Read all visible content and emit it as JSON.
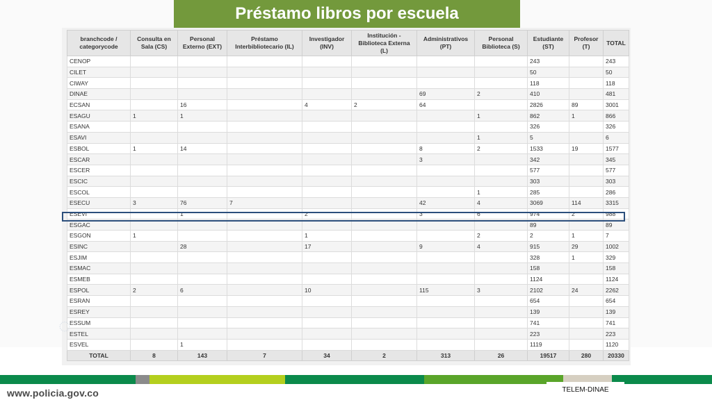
{
  "title": "Préstamo libros por escuela",
  "colors": {
    "title_bg": "#73993c",
    "highlight_border": "#2c4f7c",
    "stripe_colors": [
      "#0b8a4b",
      "#8b8b8b",
      "#b4cf1e",
      "#0b8a4b",
      "#5aa52a",
      "#0b8a4b",
      "#d6cfc1",
      "#0b8a4b"
    ]
  },
  "table": {
    "headers": [
      [
        "branchcode /",
        "categorycode"
      ],
      [
        "Consulta en",
        "Sala (CS)"
      ],
      [
        "Personal",
        "Externo (EXT)"
      ],
      [
        "Préstamo",
        "Interbibliotecario (IL)"
      ],
      [
        "Investigador",
        "(INV)"
      ],
      [
        "Institución -",
        "Biblioteca Externa",
        "(L)"
      ],
      [
        "Administrativos",
        "(PT)"
      ],
      [
        "Personal",
        "Biblioteca (S)"
      ],
      [
        "Estudiante",
        "(ST)"
      ],
      [
        "Profesor",
        "(T)"
      ],
      [
        "TOTAL"
      ]
    ],
    "rows": [
      [
        "CENOP",
        "",
        "",
        "",
        "",
        "",
        "",
        "",
        "243",
        "",
        "243"
      ],
      [
        "CILET",
        "",
        "",
        "",
        "",
        "",
        "",
        "",
        "50",
        "",
        "50"
      ],
      [
        "CIWAY",
        "",
        "",
        "",
        "",
        "",
        "",
        "",
        "118",
        "",
        "118"
      ],
      [
        "DINAE",
        "",
        "",
        "",
        "",
        "",
        "69",
        "2",
        "410",
        "",
        "481"
      ],
      [
        "ECSAN",
        "",
        "16",
        "",
        "4",
        "2",
        "64",
        "",
        "2826",
        "89",
        "3001"
      ],
      [
        "ESAGU",
        "1",
        "1",
        "",
        "",
        "",
        "",
        "1",
        "862",
        "1",
        "866"
      ],
      [
        "ESANA",
        "",
        "",
        "",
        "",
        "",
        "",
        "",
        "326",
        "",
        "326"
      ],
      [
        "ESAVI",
        "",
        "",
        "",
        "",
        "",
        "",
        "1",
        "5",
        "",
        "6"
      ],
      [
        "ESBOL",
        "1",
        "14",
        "",
        "",
        "",
        "8",
        "2",
        "1533",
        "19",
        "1577"
      ],
      [
        "ESCAR",
        "",
        "",
        "",
        "",
        "",
        "3",
        "",
        "342",
        "",
        "345"
      ],
      [
        "ESCER",
        "",
        "",
        "",
        "",
        "",
        "",
        "",
        "577",
        "",
        "577"
      ],
      [
        "ESCIC",
        "",
        "",
        "",
        "",
        "",
        "",
        "",
        "303",
        "",
        "303"
      ],
      [
        "ESCOL",
        "",
        "",
        "",
        "",
        "",
        "",
        "1",
        "285",
        "",
        "286"
      ],
      [
        "ESECU",
        "3",
        "76",
        "7",
        "",
        "",
        "42",
        "4",
        "3069",
        "114",
        "3315"
      ],
      [
        "ESEVI",
        "",
        "1",
        "",
        "2",
        "",
        "3",
        "6",
        "974",
        "2",
        "988"
      ],
      [
        "ESGAC",
        "",
        "",
        "",
        "",
        "",
        "",
        "",
        "89",
        "",
        "89"
      ],
      [
        "ESGON",
        "1",
        "",
        "",
        "1",
        "",
        "",
        "2",
        "2",
        "1",
        "7"
      ],
      [
        "ESINC",
        "",
        "28",
        "",
        "17",
        "",
        "9",
        "4",
        "915",
        "29",
        "1002"
      ],
      [
        "ESJIM",
        "",
        "",
        "",
        "",
        "",
        "",
        "",
        "328",
        "1",
        "329"
      ],
      [
        "ESMAC",
        "",
        "",
        "",
        "",
        "",
        "",
        "",
        "158",
        "",
        "158"
      ],
      [
        "ESMEB",
        "",
        "",
        "",
        "",
        "",
        "",
        "",
        "1124",
        "",
        "1124"
      ],
      [
        "ESPOL",
        "2",
        "6",
        "",
        "10",
        "",
        "115",
        "3",
        "2102",
        "24",
        "2262"
      ],
      [
        "ESRAN",
        "",
        "",
        "",
        "",
        "",
        "",
        "",
        "654",
        "",
        "654"
      ],
      [
        "ESREY",
        "",
        "",
        "",
        "",
        "",
        "",
        "",
        "139",
        "",
        "139"
      ],
      [
        "ESSUM",
        "",
        "",
        "",
        "",
        "",
        "",
        "",
        "741",
        "",
        "741"
      ],
      [
        "ESTEL",
        "",
        "",
        "",
        "",
        "",
        "",
        "",
        "223",
        "",
        "223"
      ],
      [
        "ESVEL",
        "",
        "1",
        "",
        "",
        "",
        "",
        "",
        "1119",
        "",
        "1120"
      ]
    ],
    "totals": [
      "TOTAL",
      "8",
      "143",
      "7",
      "34",
      "2",
      "313",
      "26",
      "19517",
      "280",
      "20330"
    ],
    "highlighted_row": "ESEVI"
  },
  "footer": {
    "url": "www.policia.gov.co",
    "label": "TELEM-DINAE"
  }
}
